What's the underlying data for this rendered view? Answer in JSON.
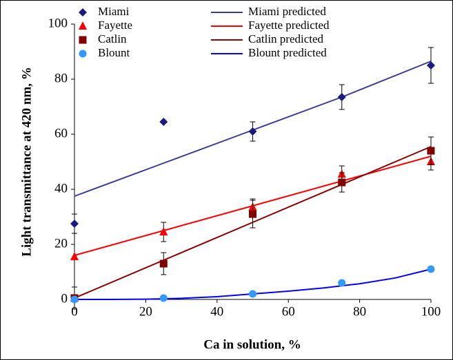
{
  "chart_data": {
    "type": "scatter",
    "xlabel": "Ca in solution, %",
    "ylabel": "Light transmittance at 420 nm, %",
    "xlim": [
      0,
      100
    ],
    "xticks": [
      0,
      20,
      40,
      60,
      80,
      100
    ],
    "ylim": [
      0,
      100
    ],
    "yticks": [
      0,
      20,
      40,
      60,
      80,
      100
    ],
    "series": [
      {
        "name": "Miami",
        "type": "scatter",
        "marker": "diamond",
        "color": "#1a1a80",
        "x": [
          0,
          25,
          50,
          75,
          100
        ],
        "values": [
          27.5,
          64.5,
          61,
          73.5,
          85
        ],
        "errors": [
          3.5,
          null,
          3.5,
          4.5,
          6.5
        ]
      },
      {
        "name": "Fayette",
        "type": "scatter",
        "marker": "triangle",
        "color": "#ff0000",
        "x": [
          0,
          25,
          50,
          75,
          100
        ],
        "values": [
          15.5,
          24.5,
          33.5,
          45.5,
          50
        ],
        "errors": [
          null,
          3.5,
          3,
          3,
          3
        ]
      },
      {
        "name": "Catlin",
        "type": "scatter",
        "marker": "square",
        "color": "#800000",
        "x": [
          0,
          25,
          50,
          75,
          100
        ],
        "values": [
          0.5,
          13,
          31,
          42.5,
          54
        ],
        "errors": [
          4,
          4,
          5,
          3.5,
          5
        ]
      },
      {
        "name": "Blount",
        "type": "scatter",
        "marker": "circle",
        "color": "#3399ff",
        "x": [
          0,
          25,
          50,
          75,
          100
        ],
        "values": [
          0,
          0.5,
          2,
          6,
          11
        ],
        "errors": [
          null,
          null,
          null,
          null,
          null
        ]
      },
      {
        "name": "Miami predicted",
        "type": "line",
        "color": "#3a3a9a",
        "x": [
          0,
          25,
          50,
          75,
          100
        ],
        "values": [
          37.5,
          49.5,
          61.5,
          73.5,
          86.5
        ]
      },
      {
        "name": "Fayette predicted",
        "type": "line",
        "color": "#ff0000",
        "x": [
          0,
          25,
          50,
          75,
          100
        ],
        "values": [
          16,
          25,
          34,
          43,
          52
        ]
      },
      {
        "name": "Catlin predicted",
        "type": "line",
        "color": "#8b0000",
        "x": [
          0,
          100
        ],
        "values": [
          0.5,
          55.5
        ]
      },
      {
        "name": "Blount predicted",
        "type": "line",
        "color": "#0000ff",
        "x": [
          0,
          10,
          20,
          30,
          40,
          50,
          60,
          70,
          80,
          90,
          100
        ],
        "values": [
          0,
          0,
          0.1,
          0.4,
          1,
          2,
          3,
          4.2,
          5.7,
          7.8,
          11
        ]
      }
    ]
  }
}
